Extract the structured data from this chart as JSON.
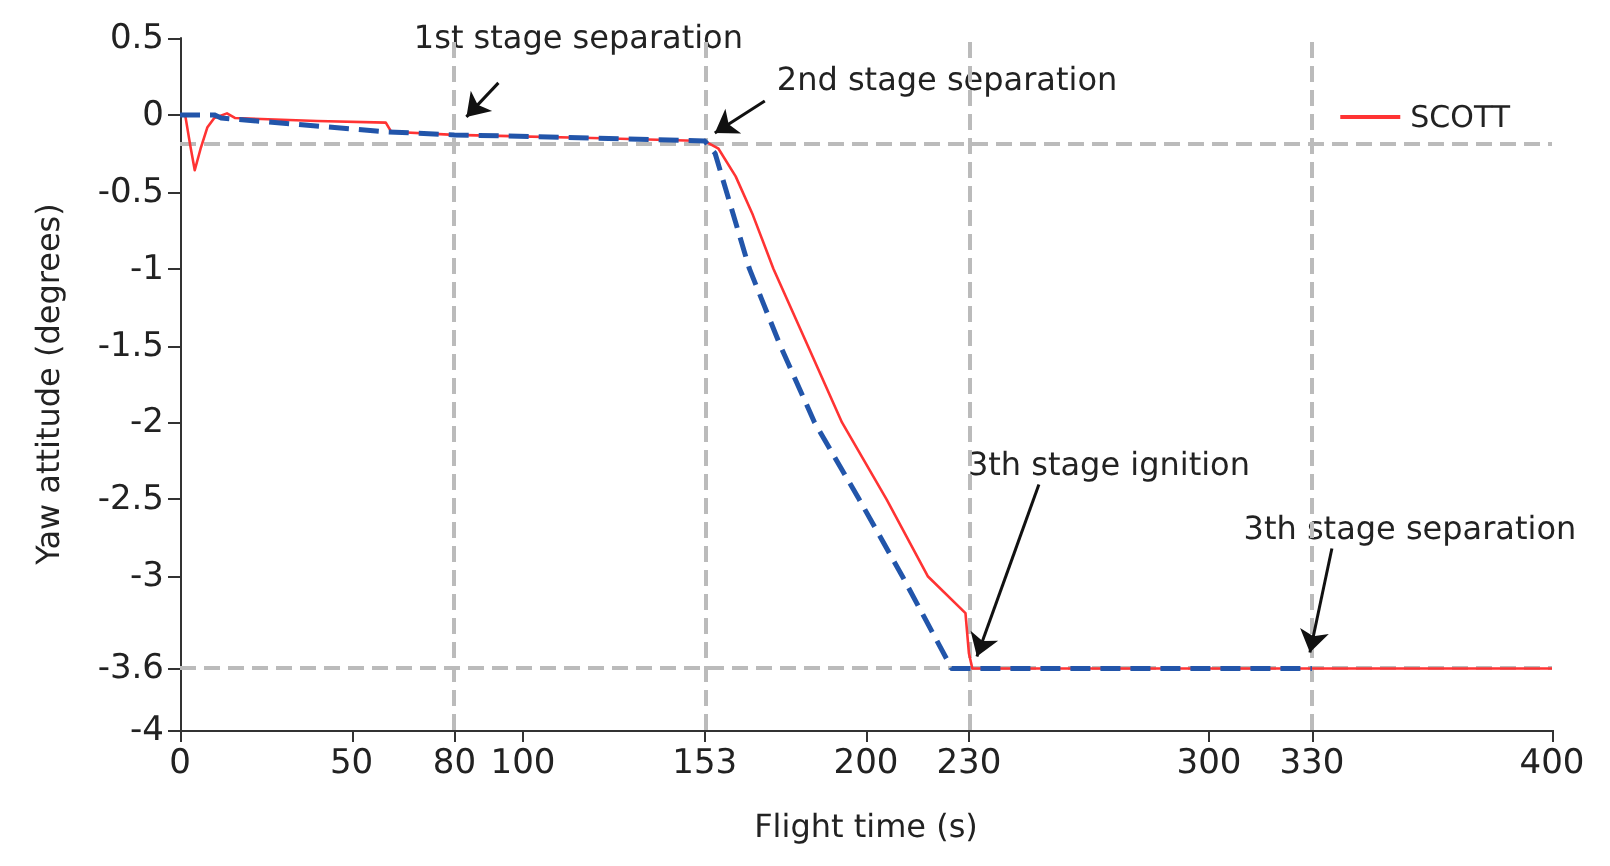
{
  "chart_data": {
    "type": "line",
    "xlabel": "Flight time (s)",
    "ylabel": "Yaw attitude (degrees)",
    "xlim": [
      0,
      400
    ],
    "xticks": [
      0,
      50,
      80,
      100,
      153,
      200,
      230,
      300,
      330,
      400
    ],
    "ylim": [
      -4,
      0.5
    ],
    "yticks": [
      0.5,
      0,
      -0.5,
      -1,
      -1.5,
      -2,
      -2.5,
      -3,
      -3.6,
      -4
    ],
    "grid": false,
    "legend": "top right",
    "marker": "none",
    "series": [
      {
        "name": "SCOTT",
        "color": "#ff3333",
        "line_style": "solid",
        "x": [
          0,
          1.5,
          3,
          4.3,
          6,
          8,
          10,
          13.7,
          16,
          40,
          60,
          61.6,
          80,
          120,
          153,
          157,
          162,
          167,
          173,
          183,
          193,
          206,
          218,
          229,
          230,
          231,
          400
        ],
        "values": [
          0,
          0,
          -0.2,
          -0.36,
          -0.22,
          -0.08,
          -0.02,
          0.01,
          -0.02,
          -0.04,
          -0.05,
          -0.11,
          -0.13,
          -0.15,
          -0.17,
          -0.22,
          -0.4,
          -0.65,
          -1,
          -1.5,
          -2,
          -2.5,
          -3,
          -3.24,
          -3.5,
          -3.6,
          -3.6
        ]
      },
      {
        "color": "#2255aa",
        "line_style": "dashed",
        "x": [
          0,
          10,
          12,
          60,
          80,
          120,
          153,
          156,
          160,
          166,
          175,
          185,
          198,
          210.6,
          225,
          330
        ],
        "values": [
          0,
          0,
          -0.02,
          -0.11,
          -0.13,
          -0.15,
          -0.17,
          -0.25,
          -0.55,
          -1,
          -1.5,
          -2,
          -2.5,
          -3,
          -3.6,
          -3.6
        ]
      }
    ],
    "ref_lines": [
      {
        "axis": "x",
        "value": 80,
        "color": "#bbbbbb",
        "line_style": "dashed"
      },
      {
        "axis": "x",
        "value": 153,
        "color": "#bbbbbb",
        "line_style": "dashed"
      },
      {
        "axis": "x",
        "value": 230,
        "color": "#bbbbbb",
        "line_style": "dashed"
      },
      {
        "axis": "x",
        "value": 330,
        "color": "#bbbbbb",
        "line_style": "dashed"
      },
      {
        "axis": "y",
        "value": -0.19,
        "color": "#bbbbbb",
        "line_style": "dashed"
      },
      {
        "axis": "y",
        "value": -3.6,
        "color": "#bbbbbb",
        "line_style": "dashed"
      }
    ],
    "annotations": [
      {
        "text": "1st stage separation",
        "x": 80,
        "y": -0.13
      },
      {
        "text": "2nd stage separation",
        "x": 153,
        "y": -0.17
      },
      {
        "text": "3th stage ignition",
        "x": 230,
        "y": -3.6
      },
      {
        "text": "3th stage separation",
        "x": 330,
        "y": -3.6
      }
    ]
  }
}
